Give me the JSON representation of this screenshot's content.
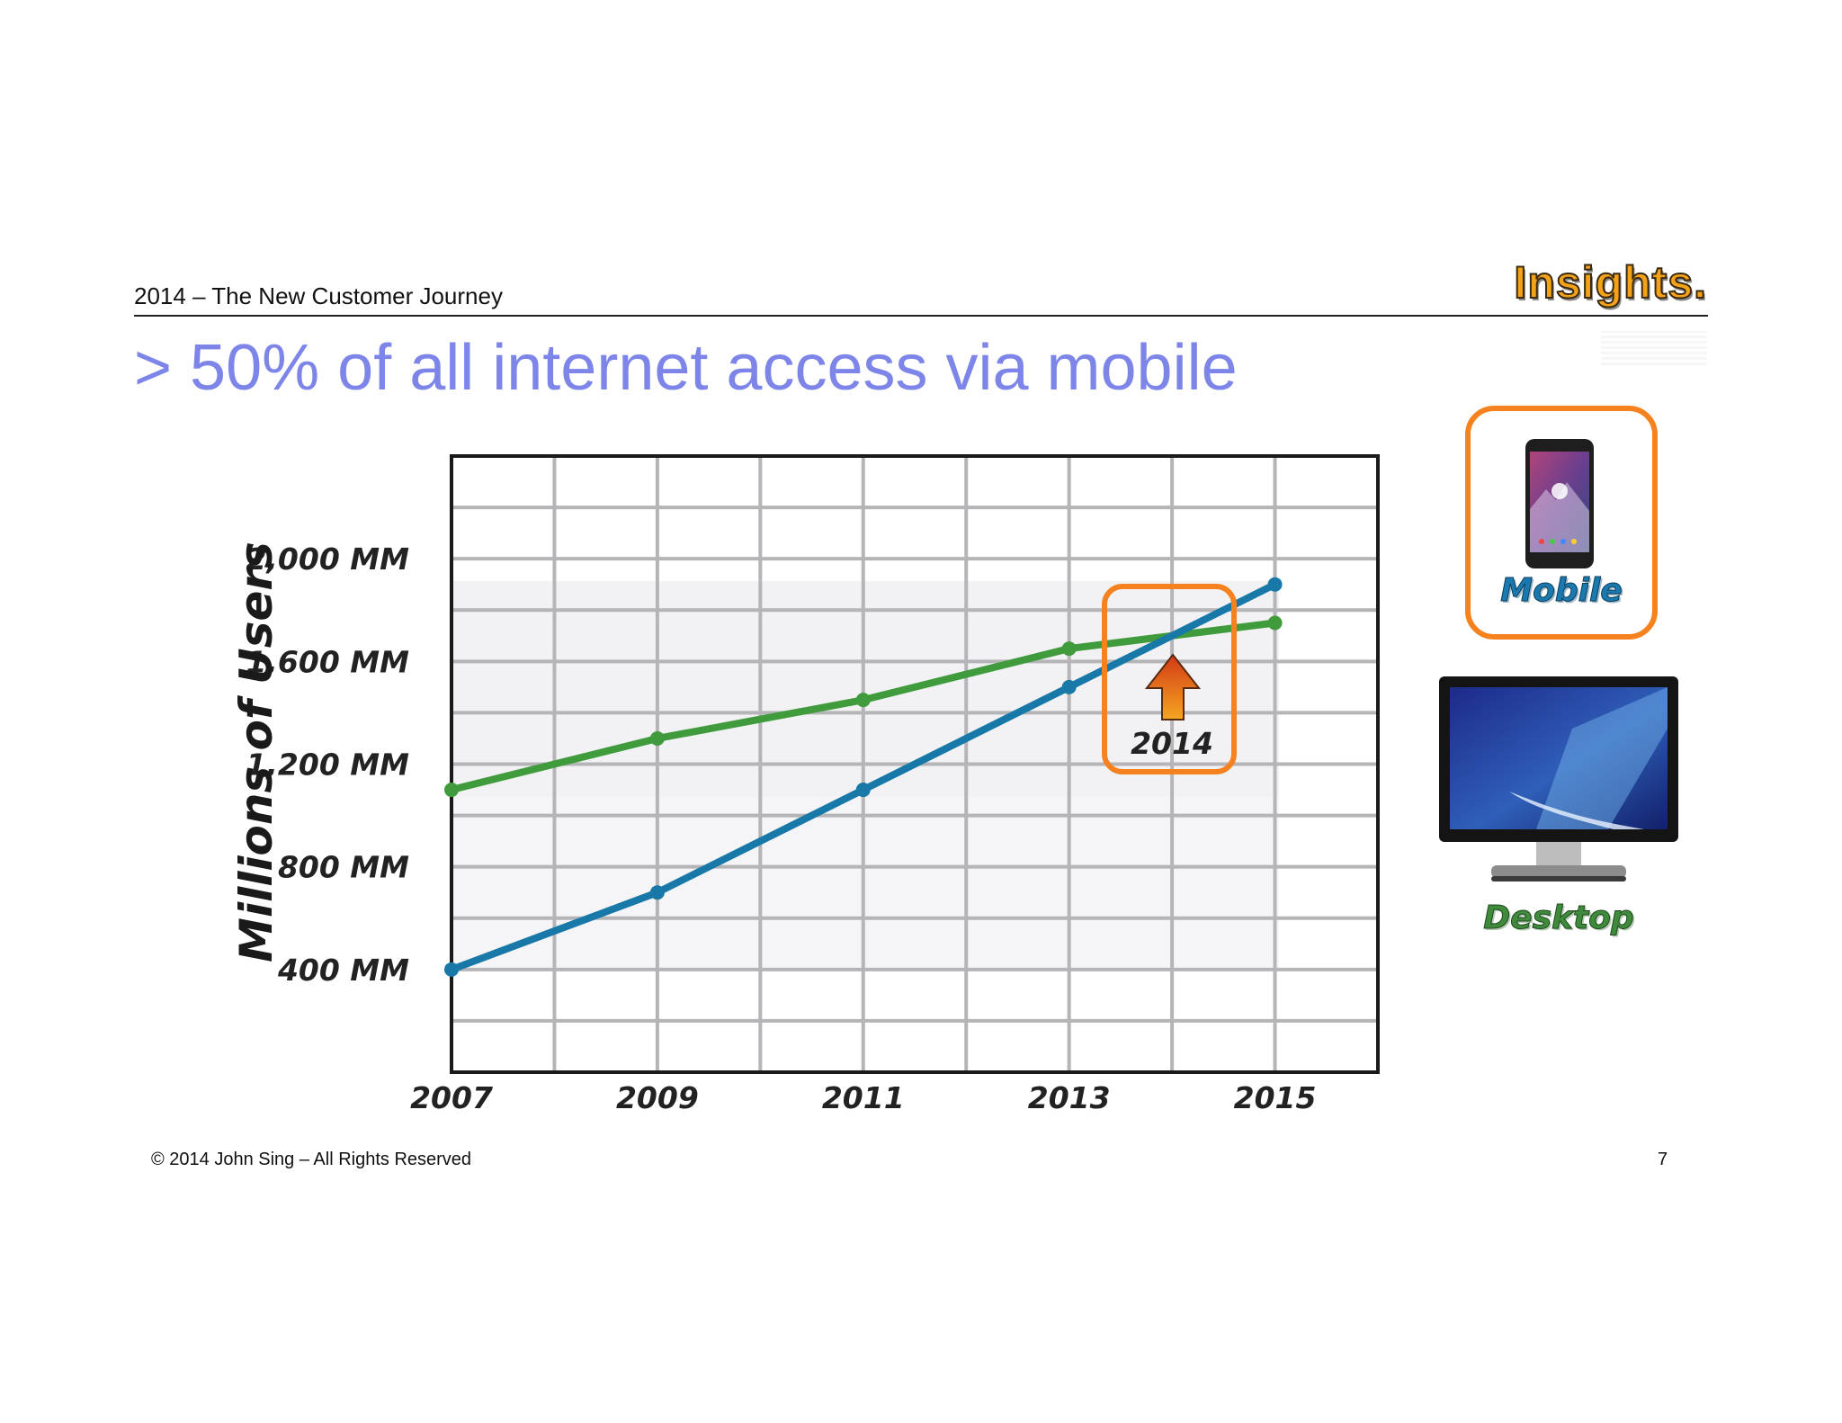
{
  "header": {
    "subtitle": "2014 – The New Customer Journey",
    "brand": "Insights."
  },
  "slide": {
    "title": "> 50% of all internet access via mobile"
  },
  "footer": {
    "copyright": "© 2014 John Sing – All Rights Reserved",
    "page": "7"
  },
  "devices": {
    "mobile_label": "Mobile",
    "desktop_label": "Desktop"
  },
  "callout": {
    "label": "2014"
  },
  "colors": {
    "mobile": "#1878a8",
    "desktop": "#3f9b3c",
    "highlight": "#f5821f",
    "title": "#7d86e8"
  },
  "chart_data": {
    "type": "line",
    "ylabel": "Millions of Users",
    "xlabel": "",
    "x": [
      2007,
      2009,
      2011,
      2013,
      2015
    ],
    "x_tick_labels": [
      "2007",
      "2009",
      "2011",
      "2013",
      "2015"
    ],
    "y_ticks": [
      400,
      800,
      1200,
      1600,
      2000
    ],
    "y_tick_labels": [
      "400 MM",
      "800 MM",
      "1,200 MM",
      "1,600 MM",
      "2,000 MM"
    ],
    "xlim": [
      2007,
      2016
    ],
    "ylim": [
      0,
      2400
    ],
    "grid": true,
    "series": [
      {
        "key": "mobile",
        "values": [
          400,
          700,
          1100,
          1500,
          1900
        ]
      },
      {
        "key": "desktop",
        "values": [
          1100,
          1300,
          1450,
          1650,
          1750
        ]
      }
    ],
    "annotation": {
      "x": 2014,
      "text": "2014"
    }
  }
}
